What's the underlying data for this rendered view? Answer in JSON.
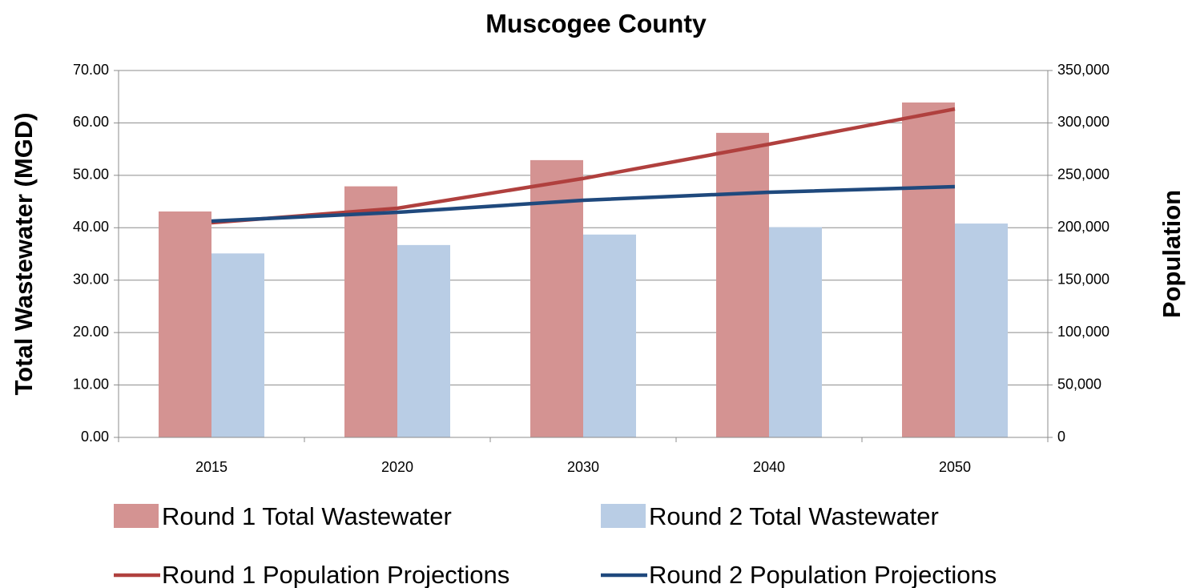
{
  "chart_data": {
    "type": "bar",
    "title": "Muscogee County",
    "y_label": "Total Wastewater (MGD)",
    "y2_label": "Population",
    "categories": [
      "2015",
      "2020",
      "2030",
      "2040",
      "2050"
    ],
    "series": [
      {
        "name": "Round 1 Total Wastewater",
        "type": "bar",
        "color": "#d49392",
        "values": [
          43.1,
          47.9,
          52.9,
          58.1,
          63.9
        ]
      },
      {
        "name": "Round 2 Total Wastewater",
        "type": "bar",
        "color": "#b9cde5",
        "values": [
          35.1,
          36.7,
          38.7,
          40.1,
          40.8
        ]
      },
      {
        "name": "Round 1 Population Projections",
        "type": "line",
        "axis": "y2",
        "color": "#b0403e",
        "values": [
          204800,
          218600,
          247000,
          279700,
          313300
        ]
      },
      {
        "name": "Round 2 Population Projections",
        "type": "line",
        "axis": "y2",
        "color": "#1f497d",
        "values": [
          206300,
          214700,
          226200,
          233800,
          239200
        ]
      }
    ],
    "ylim": [
      0,
      70
    ],
    "yticks": [
      {
        "value": 0,
        "label": "0.00"
      },
      {
        "value": 10,
        "label": "10.00"
      },
      {
        "value": 20,
        "label": "20.00"
      },
      {
        "value": 30,
        "label": "30.00"
      },
      {
        "value": 40,
        "label": "40.00"
      },
      {
        "value": 50,
        "label": "50.00"
      },
      {
        "value": 60,
        "label": "60.00"
      },
      {
        "value": 70,
        "label": "70.00"
      }
    ],
    "y2lim": [
      0,
      350000
    ],
    "y2ticks": [
      0,
      {
        "value": 50000,
        "label": "50,000"
      },
      {
        "value": 100000,
        "label": "100,000"
      },
      {
        "value": 150000,
        "label": "150,000"
      },
      {
        "value": 200000,
        "label": "200,000"
      },
      {
        "value": 250000,
        "label": "250,000"
      },
      {
        "value": 300000,
        "label": "300,000"
      },
      {
        "value": 350000,
        "label": "350,000"
      }
    ],
    "grid": true,
    "legend": "bottom"
  }
}
